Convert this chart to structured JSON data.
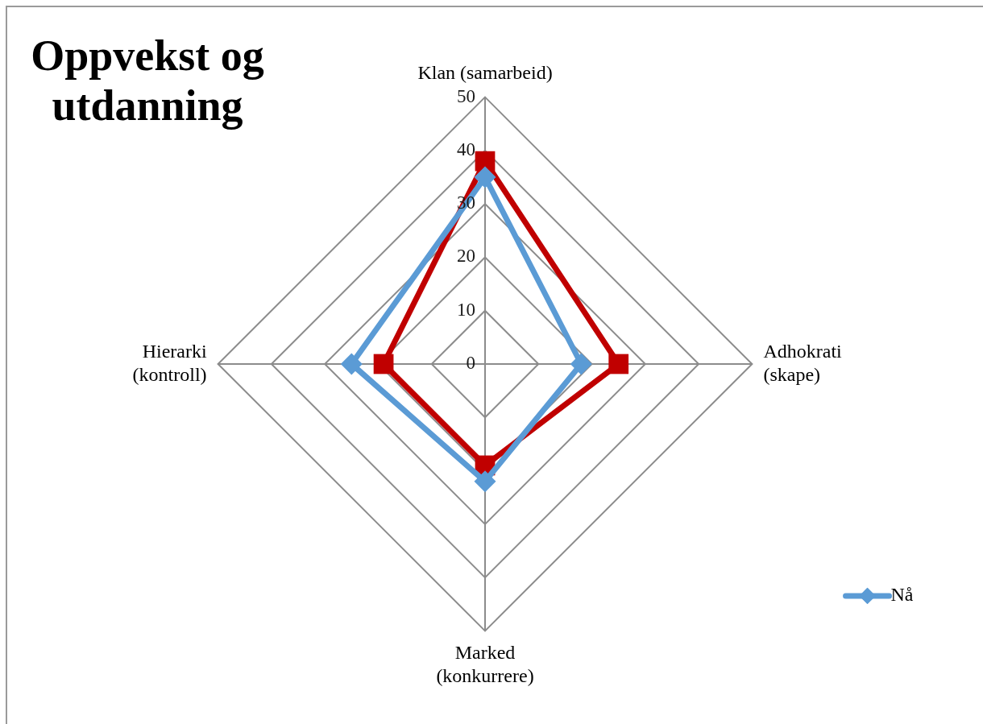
{
  "chart_data": {
    "type": "radar",
    "title": "Oppvekst og utdanning",
    "categories": [
      "Klan (samarbeid)",
      "Adhokrati\n(skape)",
      "Marked\n(konkurrere)",
      "Hierarki\n(kontroll)"
    ],
    "series": [
      {
        "name": "Nå",
        "color": "#5b9bd5",
        "values": [
          35,
          18,
          22,
          25
        ],
        "marker": "diamond"
      },
      {
        "color": "#c00000",
        "values": [
          38,
          25,
          19,
          19
        ],
        "marker": "square"
      }
    ],
    "ylim": [
      0,
      50
    ],
    "yticks": [
      0,
      10,
      20,
      30,
      40,
      50
    ],
    "grid": true,
    "legend": "bottom right",
    "line_style": "solid"
  }
}
